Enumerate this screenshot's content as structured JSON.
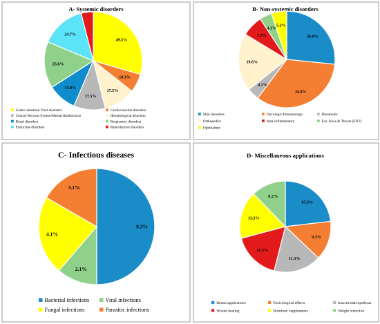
{
  "chart_data": [
    {
      "type": "pie",
      "title": "A- Systemic disorders",
      "labels": [
        "Gastro-intestinal Tract disorders",
        "Cardiovascular disorders",
        "Central Nervous System/Mental &behavioral",
        "Hematological disorders",
        "Renal disorders",
        "Respiratory disorders",
        "Endocrine disorders",
        "Reproductive disorders"
      ],
      "colors": [
        "#FFFF00",
        "#F47F32",
        "#B8B8B8",
        "#FFF2CC",
        "#0F8CCB",
        "#8FD18A",
        "#5BE3F7",
        "#E31A1C"
      ],
      "slice_order": [
        0,
        1,
        3,
        2,
        4,
        5,
        6,
        7
      ],
      "values": [
        49.5,
        10.3,
        17.5,
        17.5,
        15.9,
        25.8,
        24.7,
        6.7
      ],
      "data_labels": [
        "49.5%",
        "10.3%",
        "17.5%",
        "17.5%",
        "15.9%",
        "25.8%",
        "24.7%",
        ""
      ],
      "legend_cols": 2
    },
    {
      "type": "pie",
      "title": "B- Non-systemic disorders",
      "labels": [
        "Skin disorders",
        "Oncologic/Immunologic",
        "Rheumatic",
        "Orthopedics",
        "Anti-inflammatory",
        "Ear, Nose & Throat (ENT)",
        "Ophthalmic"
      ],
      "colors": [
        "#1A8DC9",
        "#F47F32",
        "#B8B8B8",
        "#FFF2CC",
        "#E31A1C",
        "#8FD18A",
        "#FFFF00"
      ],
      "slice_order": [
        0,
        1,
        2,
        3,
        4,
        5,
        6
      ],
      "values": [
        26.9,
        34.0,
        4.1,
        19.6,
        7.2,
        4.1,
        5.2
      ],
      "data_labels": [
        "26.9%",
        "34.0%",
        "4.1%",
        "19.6%",
        "7.2%",
        "4.1%",
        "5.2%"
      ],
      "legend_cols": 3
    },
    {
      "type": "pie",
      "title": "C- Infectious diseases",
      "labels": [
        "Bacterial infections",
        "Viral infections",
        "Fungal infections",
        "Parasitic infections"
      ],
      "colors": [
        "#1A8DC9",
        "#8FD18A",
        "#FFFF00",
        "#F47F32"
      ],
      "slice_order": [
        0,
        1,
        2,
        3
      ],
      "values": [
        9.3,
        2.1,
        4.1,
        3.1
      ],
      "data_labels": [
        "9.3%",
        "2.1%",
        "4.1%",
        "3.1%"
      ],
      "legend_cols": 2
    },
    {
      "type": "pie",
      "title": "D- Miscellaneous  applications",
      "labels": [
        "Dental applications",
        "Toxicological effects",
        "Insecticidal/repellents",
        "Wound healing",
        "Nutrition/ supplements",
        "Weight  reduction"
      ],
      "colors": [
        "#1A8DC9",
        "#F47F32",
        "#B8B8B8",
        "#E31A1C",
        "#FFFF00",
        "#8FD18A"
      ],
      "slice_order": [
        0,
        1,
        2,
        3,
        4,
        5
      ],
      "values": [
        15.5,
        9.3,
        11.3,
        11.3,
        11.3,
        8.2
      ],
      "data_labels": [
        "15.5%",
        "9.3%",
        "11.3%",
        "11.3%",
        "11.3%",
        "8.2%"
      ],
      "legend_cols": 3
    }
  ]
}
